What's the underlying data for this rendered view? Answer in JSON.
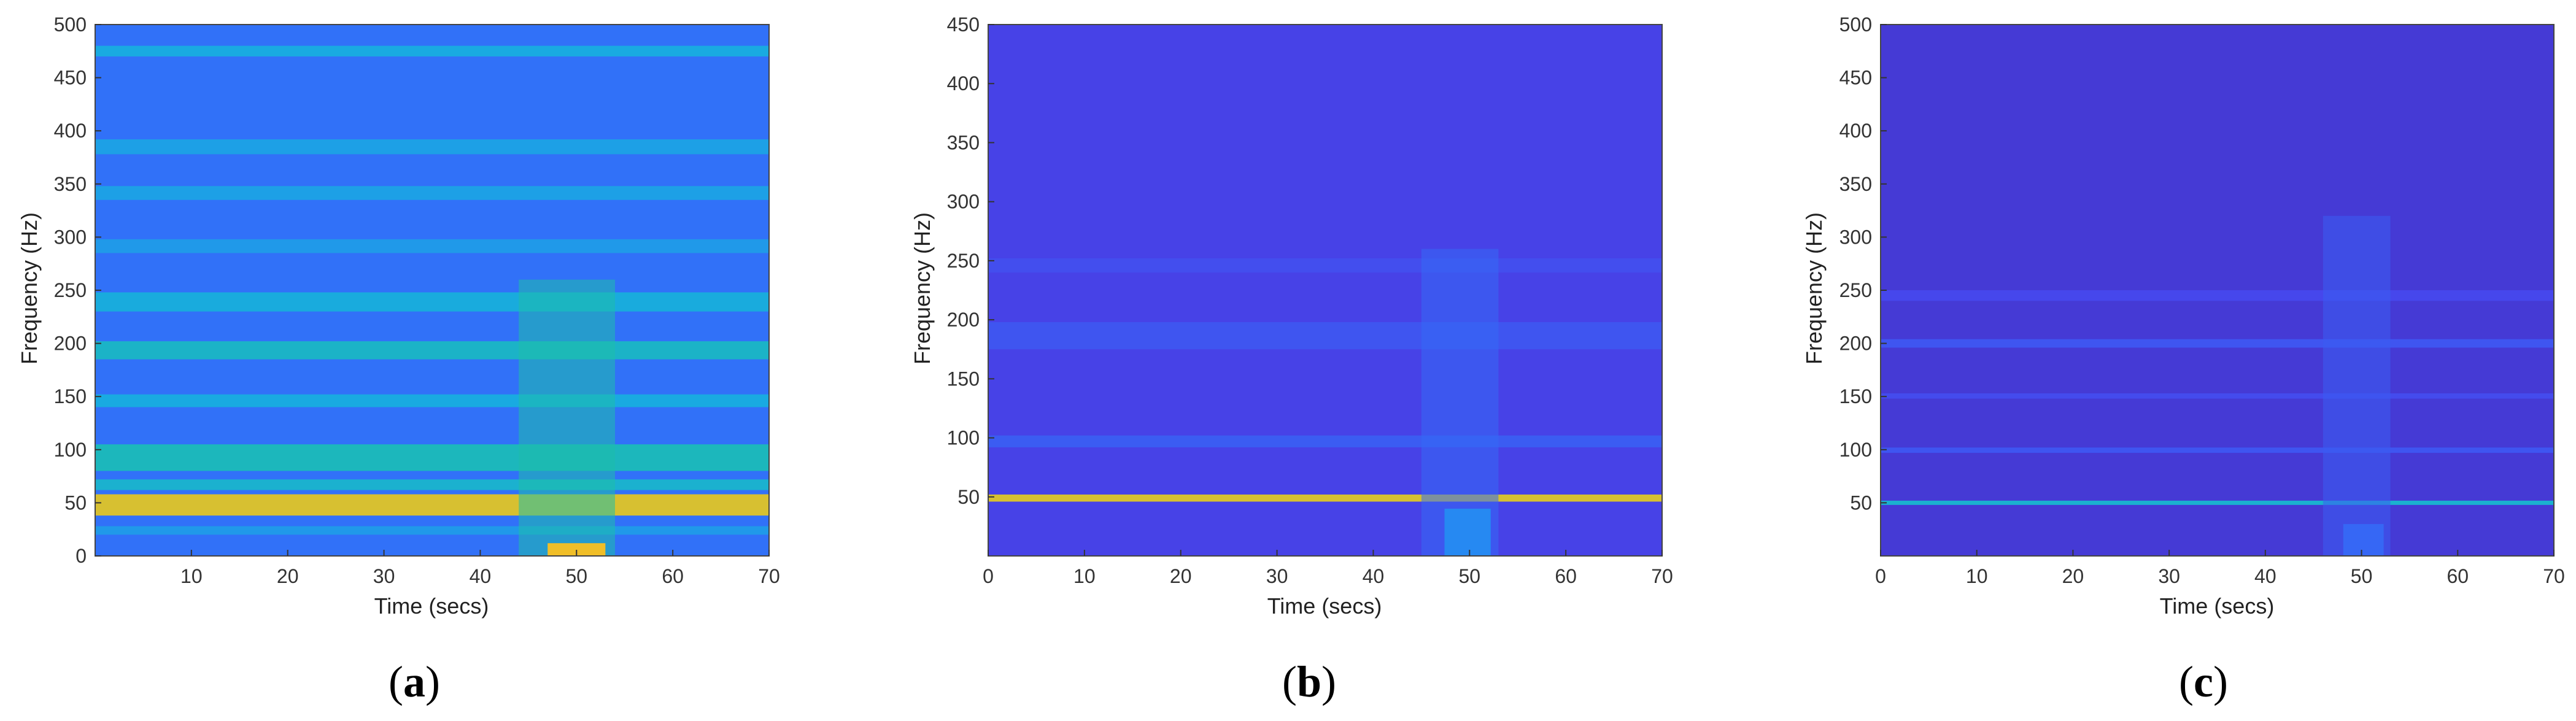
{
  "chart_data": [
    {
      "type": "heatmap",
      "label": "a",
      "xlabel": "Time (secs)",
      "ylabel": "Frequency (Hz)",
      "xlim": [
        0,
        70
      ],
      "ylim": [
        0,
        500
      ],
      "xticks": [
        10,
        20,
        30,
        40,
        50,
        60,
        70
      ],
      "yticks": [
        0,
        50,
        100,
        150,
        200,
        250,
        300,
        350,
        400,
        450,
        500
      ],
      "colormap": "parula",
      "background_level": 0.28,
      "bands": [
        {
          "from": 470,
          "to": 480,
          "level": 0.45
        },
        {
          "from": 378,
          "to": 392,
          "level": 0.42
        },
        {
          "from": 335,
          "to": 348,
          "level": 0.42
        },
        {
          "from": 285,
          "to": 298,
          "level": 0.4
        },
        {
          "from": 230,
          "to": 248,
          "level": 0.46
        },
        {
          "from": 185,
          "to": 202,
          "level": 0.52
        },
        {
          "from": 140,
          "to": 152,
          "level": 0.45
        },
        {
          "from": 80,
          "to": 105,
          "level": 0.55
        },
        {
          "from": 62,
          "to": 72,
          "level": 0.5
        },
        {
          "from": 38,
          "to": 58,
          "level": 0.85
        },
        {
          "from": 20,
          "to": 28,
          "level": 0.4
        }
      ],
      "event": {
        "t_from": 44,
        "t_to": 54,
        "f_to": 260,
        "level": 0.6,
        "base_level": 0.88,
        "base_f_to": 12
      }
    },
    {
      "type": "heatmap",
      "label": "b",
      "xlabel": "Time (secs)",
      "ylabel": "Frequency (Hz)",
      "xlim": [
        0,
        70
      ],
      "ylim": [
        0,
        450
      ],
      "xticks": [
        0,
        10,
        20,
        30,
        40,
        50,
        60,
        70
      ],
      "yticks": [
        50,
        100,
        150,
        200,
        250,
        300,
        350,
        400,
        450
      ],
      "colormap": "parula",
      "background_level": 0.14,
      "bands": [
        {
          "from": 46,
          "to": 52,
          "level": 0.85
        },
        {
          "from": 92,
          "to": 102,
          "level": 0.22
        },
        {
          "from": 175,
          "to": 198,
          "level": 0.2
        },
        {
          "from": 240,
          "to": 252,
          "level": 0.18
        }
      ],
      "event": {
        "t_from": 45,
        "t_to": 53,
        "f_to": 260,
        "level": 0.26,
        "base_level": 0.35,
        "base_f_to": 40
      }
    },
    {
      "type": "heatmap",
      "label": "c",
      "xlabel": "Time (secs)",
      "ylabel": "Frequency (Hz)",
      "xlim": [
        0,
        70
      ],
      "ylim": [
        0,
        500
      ],
      "xticks": [
        0,
        10,
        20,
        30,
        40,
        50,
        60,
        70
      ],
      "yticks": [
        50,
        100,
        150,
        200,
        250,
        300,
        350,
        400,
        450,
        500
      ],
      "colormap": "parula",
      "background_level": 0.1,
      "bands": [
        {
          "from": 48,
          "to": 52,
          "level": 0.5
        },
        {
          "from": 97,
          "to": 102,
          "level": 0.2
        },
        {
          "from": 148,
          "to": 153,
          "level": 0.17
        },
        {
          "from": 196,
          "to": 204,
          "level": 0.2
        },
        {
          "from": 240,
          "to": 250,
          "level": 0.16
        }
      ],
      "event": {
        "t_from": 46,
        "t_to": 53,
        "f_to": 320,
        "level": 0.22,
        "base_level": 0.25,
        "base_f_to": 30
      }
    }
  ]
}
